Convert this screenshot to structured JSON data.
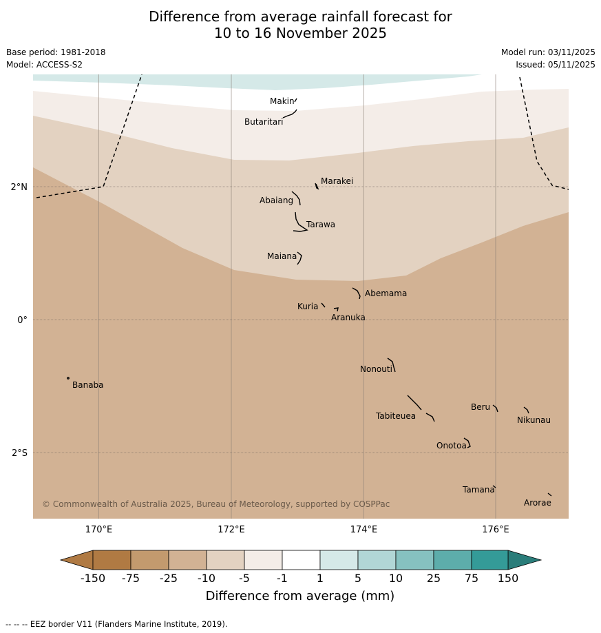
{
  "title_line1": "Difference from average rainfall forecast for",
  "title_line2": "10 to 16 November 2025",
  "meta": {
    "base_period": "Base period: 1981-2018",
    "model": "Model: ACCESS-S2",
    "model_run": "Model run: 03/11/2025",
    "issued": "Issued: 05/11/2025"
  },
  "map": {
    "lat_labels": [
      "2°N",
      "0°",
      "2°S"
    ],
    "lon_labels": [
      "170°E",
      "172°E",
      "174°E",
      "176°E"
    ],
    "places": [
      "Makin",
      "Butaritari",
      "Marakei",
      "Abaiang",
      "Tarawa",
      "Maiana",
      "Abemama",
      "Kuria",
      "Aranuka",
      "Nonouti",
      "Banaba",
      "Tabiteuea",
      "Beru",
      "Nikunau",
      "Onotoa",
      "Tamana",
      "Arorae"
    ],
    "copyright": "© Commonwealth of Australia 2025, Bureau of Meteorology, supported by COSPPac"
  },
  "legend": {
    "tick_labels": [
      "-150",
      "-75",
      "-25",
      "-10",
      "-5",
      "-1",
      "1",
      "5",
      "10",
      "25",
      "75",
      "150"
    ],
    "colors": [
      "#b07a43",
      "#c39a6e",
      "#d2b294",
      "#e3d2c1",
      "#f4ede8",
      "#ffffff",
      "#d5e9e8",
      "#b1d6d6",
      "#86c1c0",
      "#5dadab",
      "#349b98",
      "#2a7d7a"
    ],
    "label": "Difference from average (mm)"
  },
  "footer": "--  --  -- EEZ border V11 (Flanders Marine Institute, 2019)."
}
